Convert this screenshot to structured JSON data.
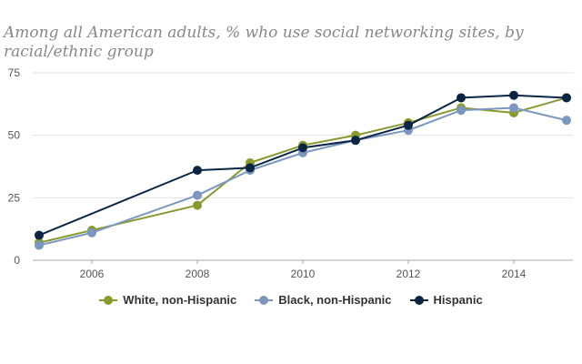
{
  "chart_data": {
    "type": "line",
    "title": "Among all American adults, % who use social networking sites, by racial/ethnic group",
    "xlabel": "",
    "ylabel": "",
    "xlim": [
      2005,
      2015
    ],
    "ylim": [
      0,
      75
    ],
    "x_ticks": [
      2006,
      2008,
      2010,
      2012,
      2014
    ],
    "y_ticks": [
      0,
      25,
      50,
      75
    ],
    "grid": "horizontal",
    "legend_position": "bottom",
    "series": [
      {
        "name": "White, non-Hispanic",
        "color": "#8a9a2e",
        "points": [
          [
            2005,
            7
          ],
          [
            2006,
            12
          ],
          [
            2008,
            22
          ],
          [
            2009,
            39
          ],
          [
            2010,
            46
          ],
          [
            2011,
            50
          ],
          [
            2012,
            55
          ],
          [
            2013,
            61
          ],
          [
            2014,
            59
          ],
          [
            2015,
            65
          ]
        ]
      },
      {
        "name": "Black, non-Hispanic",
        "color": "#7b97c0",
        "points": [
          [
            2005,
            6
          ],
          [
            2006,
            11
          ],
          [
            2008,
            26
          ],
          [
            2009,
            36
          ],
          [
            2010,
            43
          ],
          [
            2011,
            48
          ],
          [
            2012,
            52
          ],
          [
            2013,
            60
          ],
          [
            2014,
            61
          ],
          [
            2015,
            56
          ]
        ]
      },
      {
        "name": "Hispanic",
        "color": "#0b2545",
        "points": [
          [
            2005,
            10
          ],
          [
            2008,
            36
          ],
          [
            2009,
            37
          ],
          [
            2010,
            45
          ],
          [
            2011,
            48
          ],
          [
            2012,
            54
          ],
          [
            2013,
            65
          ],
          [
            2014,
            66
          ],
          [
            2015,
            65
          ]
        ]
      }
    ]
  }
}
